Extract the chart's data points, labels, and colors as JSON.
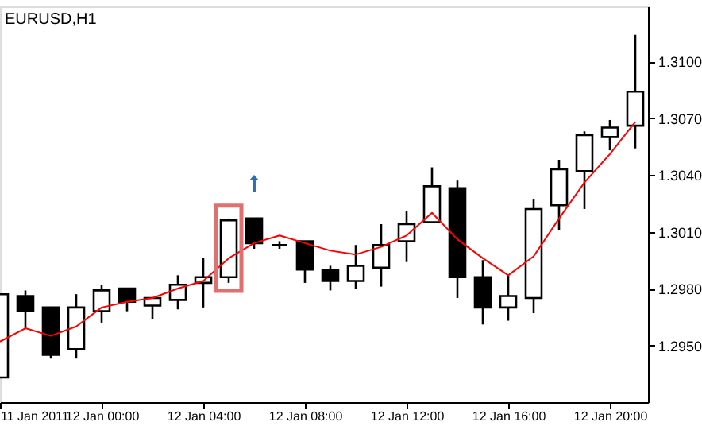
{
  "chart_data": {
    "type": "candlestick",
    "title": "EURUSD,H1",
    "x": [
      "2011-01-11T20:00",
      "2011-01-11T21:00",
      "2011-01-11T22:00",
      "2011-01-11T23:00",
      "2011-01-12T00:00",
      "2011-01-12T01:00",
      "2011-01-12T02:00",
      "2011-01-12T03:00",
      "2011-01-12T04:00",
      "2011-01-12T05:00",
      "2011-01-12T06:00",
      "2011-01-12T07:00",
      "2011-01-12T08:00",
      "2011-01-12T09:00",
      "2011-01-12T10:00",
      "2011-01-12T11:00",
      "2011-01-12T12:00",
      "2011-01-12T13:00",
      "2011-01-12T14:00",
      "2011-01-12T15:00",
      "2011-01-12T16:00",
      "2011-01-12T17:00",
      "2011-01-12T18:00",
      "2011-01-12T19:00",
      "2011-01-12T20:00",
      "2011-01-12T21:00"
    ],
    "ohlc": [
      [
        1.2933,
        1.2977,
        1.2933,
        1.2977
      ],
      [
        1.2976,
        1.2979,
        1.2959,
        1.2968
      ],
      [
        1.297,
        1.297,
        1.2943,
        1.2945
      ],
      [
        1.2948,
        1.2977,
        1.2943,
        1.297
      ],
      [
        1.2968,
        1.2982,
        1.2962,
        1.2979
      ],
      [
        1.298,
        1.298,
        1.2968,
        1.2973
      ],
      [
        1.2971,
        1.2975,
        1.2964,
        1.2975
      ],
      [
        1.2974,
        1.2987,
        1.2969,
        1.2982
      ],
      [
        1.2983,
        1.2996,
        1.297,
        1.2986
      ],
      [
        1.2986,
        1.3017,
        1.2983,
        1.3016
      ],
      [
        1.3017,
        1.3017,
        1.3001,
        1.3004
      ],
      [
        1.3003,
        1.3005,
        1.3001,
        1.3003
      ],
      [
        1.3005,
        1.3005,
        1.2983,
        1.299
      ],
      [
        1.299,
        1.2992,
        1.2979,
        1.2984
      ],
      [
        1.2984,
        1.3003,
        1.298,
        1.2992
      ],
      [
        1.2991,
        1.3014,
        1.2981,
        1.3003
      ],
      [
        1.3005,
        1.3021,
        1.2994,
        1.3014
      ],
      [
        1.3015,
        1.3044,
        1.3015,
        1.3034
      ],
      [
        1.3033,
        1.3037,
        1.2975,
        1.2986
      ],
      [
        1.2986,
        1.2995,
        1.2961,
        1.297
      ],
      [
        1.297,
        1.2987,
        1.2963,
        1.2976
      ],
      [
        1.2975,
        1.3027,
        1.2967,
        1.3022
      ],
      [
        1.3024,
        1.3048,
        1.3011,
        1.3043
      ],
      [
        1.3042,
        1.3063,
        1.3022,
        1.3061
      ],
      [
        1.306,
        1.3069,
        1.3053,
        1.3065
      ],
      [
        1.3066,
        1.3114,
        1.3054,
        1.3084
      ]
    ],
    "series": [
      {
        "type": "line",
        "color": "#ff0000",
        "values": [
          1.2952,
          1.2959,
          1.2955,
          1.296,
          1.297,
          1.2973,
          1.2975,
          1.298,
          1.2984,
          1.2996,
          1.3004,
          1.3008,
          1.3004,
          1.3,
          1.2998,
          1.3002,
          1.3008,
          1.302,
          1.3006,
          1.2996,
          1.2987,
          1.2997,
          1.3017,
          1.3036,
          1.3051,
          1.3068
        ]
      }
    ],
    "xlim": [
      "2011-01-11T20:00",
      "2011-01-12T21:30"
    ],
    "xticks": [
      {
        "value": "2011-01-11T20:00",
        "label": "11 Jan 2011"
      },
      {
        "value": "2011-01-12T00:00",
        "label": "12 Jan 00:00"
      },
      {
        "value": "2011-01-12T04:00",
        "label": "12 Jan 04:00"
      },
      {
        "value": "2011-01-12T08:00",
        "label": "12 Jan 08:00"
      },
      {
        "value": "2011-01-12T12:00",
        "label": "12 Jan 12:00"
      },
      {
        "value": "2011-01-12T16:00",
        "label": "12 Jan 16:00"
      },
      {
        "value": "2011-01-12T20:00",
        "label": "12 Jan 20:00"
      }
    ],
    "ylim": [
      1.292,
      1.3129
    ],
    "yticks": [
      {
        "value": 1.295,
        "label": "1.2950"
      },
      {
        "value": 1.298,
        "label": "1.2980"
      },
      {
        "value": 1.301,
        "label": "1.3010"
      },
      {
        "value": 1.304,
        "label": "1.3040"
      },
      {
        "value": 1.307,
        "label": "1.3070"
      },
      {
        "value": 1.31,
        "label": "1.3100"
      }
    ],
    "grid": false
  }
}
